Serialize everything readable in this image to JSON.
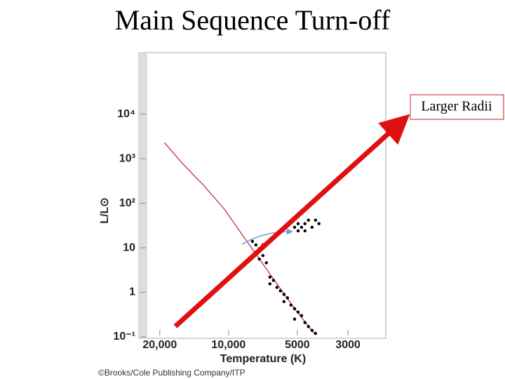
{
  "chart_data": {
    "type": "scatter",
    "title": "Main Sequence Turn-off",
    "x_label": "Temperature (K)",
    "y_label": "L/L⊙",
    "credit": "©Brooks/Cole Publishing Company/ITP",
    "annotation": "Larger Radii",
    "x_scale": "log",
    "y_scale": "log",
    "x_reversed": true,
    "xlim": [
      23500,
      2050
    ],
    "ylim": [
      0.1,
      200000
    ],
    "xticks": [
      {
        "value": 20000,
        "label": "20,000"
      },
      {
        "value": 10000,
        "label": "10,000"
      },
      5000,
      3000
    ],
    "yticks": [
      {
        "value": 0.1,
        "label": "10⁻¹"
      },
      1,
      10,
      {
        "value": 100,
        "label": "10²"
      },
      {
        "value": 1000,
        "label": "10³"
      },
      {
        "value": 10000,
        "label": "10⁴"
      }
    ],
    "series": [
      {
        "type": "line",
        "color": "#c0304a",
        "x": [
          19100,
          15900,
          12900,
          10400,
          8740,
          7330,
          6140,
          5140,
          4160
        ],
        "values": [
          2300,
          776,
          257,
          72,
          20,
          5.6,
          1.55,
          0.43,
          0.11
        ]
      },
      {
        "type": "scatter",
        "color": "#000000",
        "x": [
          5140,
          4960,
          4790,
          4630,
          4470,
          4310,
          4160,
          4020,
          4960,
          4630,
          7860,
          7590,
          7330,
          7070,
          7590,
          7070,
          7330,
          6830,
          6590,
          6360,
          6590,
          6140,
          5930,
          5720,
          5520,
          5720,
          5330,
          5140,
          4960,
          4790,
          5140,
          4630,
          4470,
          4310,
          4160
        ],
        "values": [
          28.9,
          34.7,
          28.9,
          34.7,
          41.6,
          28.9,
          41.6,
          34.7,
          24,
          24,
          13.9,
          11.6,
          9.6,
          11.6,
          8.0,
          6.7,
          5.6,
          4.6,
          2.2,
          1.86,
          1.55,
          1.29,
          1.08,
          0.9,
          0.75,
          0.62,
          0.52,
          0.43,
          0.36,
          0.3,
          0.25,
          0.21,
          0.17,
          0.14,
          0.12
        ]
      }
    ]
  }
}
